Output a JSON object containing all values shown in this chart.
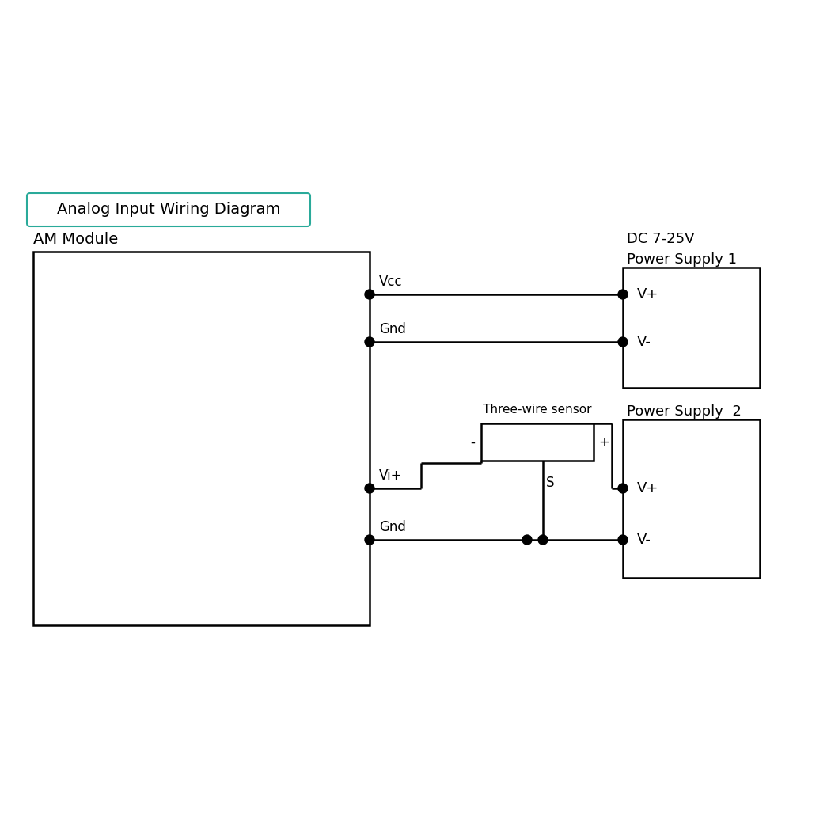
{
  "title": "Analog Input Wiring Diagram",
  "am_module_label": "AM Module",
  "dc_label": "DC 7-25V",
  "ps1_label": "Power Supply 1",
  "ps2_label": "Power Supply  2",
  "sensor_label": "Three-wire sensor",
  "vcc_label": "Vcc",
  "gnd1_label": "Gnd",
  "vip_label": "Vi+",
  "gnd2_label": "Gnd",
  "vplus1_label": "V+",
  "vminus1_label": "V-",
  "vplus2_label": "V+",
  "vminus2_label": "V-",
  "s_label": "S",
  "minus_label": "-",
  "plus_label": "+",
  "bg_color": "#ffffff",
  "line_color": "#000000",
  "title_border_color": "#2aaa9a",
  "dot_color": "#000000",
  "lw": 1.8,
  "dot_r": 0.055
}
